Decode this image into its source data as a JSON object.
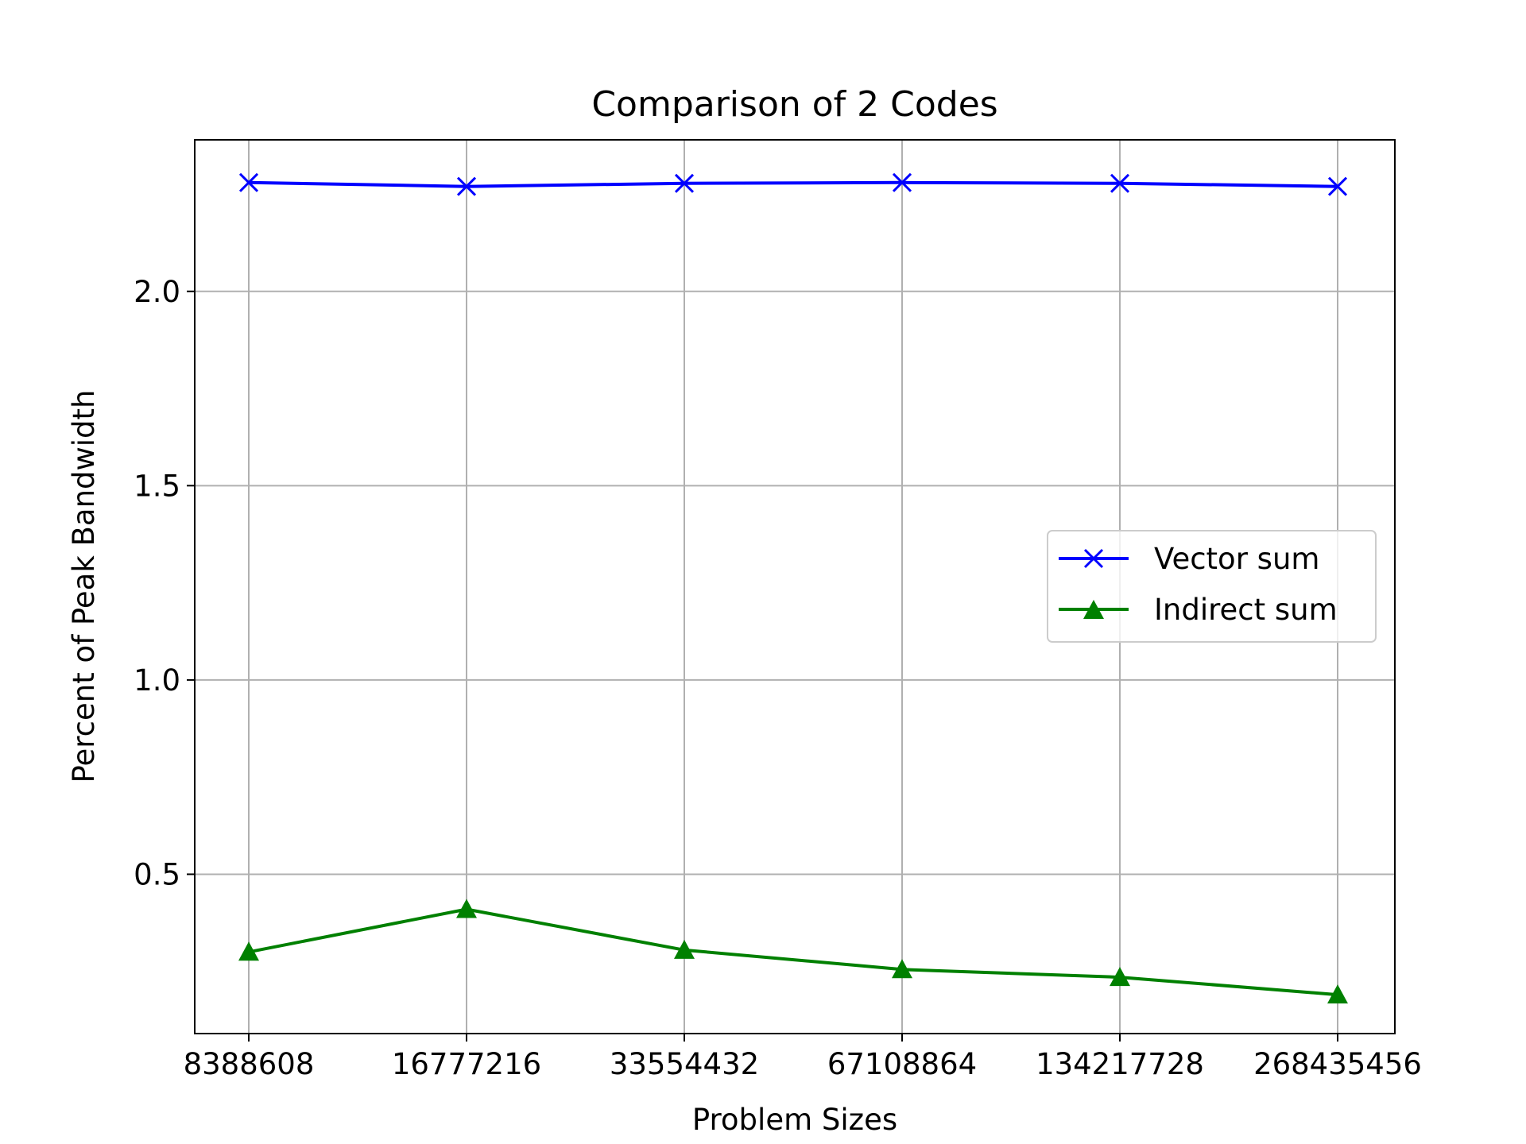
{
  "chart_data": {
    "type": "line",
    "title": "Comparison of 2 Codes",
    "xlabel": "Problem Sizes",
    "ylabel": "Percent of Peak Bandwidth",
    "categories": [
      "8388608",
      "16777216",
      "33554432",
      "67108864",
      "134217728",
      "268435456"
    ],
    "yticks": [
      "0.5",
      "1.0",
      "1.5",
      "2.0"
    ],
    "ylim": [
      0.09,
      2.39
    ],
    "grid": true,
    "legend_position": "center-right",
    "series": [
      {
        "name": "Vector sum",
        "color": "#0000ff",
        "marker": "x",
        "values": [
          2.28,
          2.27,
          2.278,
          2.28,
          2.278,
          2.27
        ]
      },
      {
        "name": "Indirect sum",
        "color": "#008000",
        "marker": "triangle",
        "values": [
          0.3,
          0.41,
          0.305,
          0.255,
          0.235,
          0.19
        ]
      }
    ]
  }
}
